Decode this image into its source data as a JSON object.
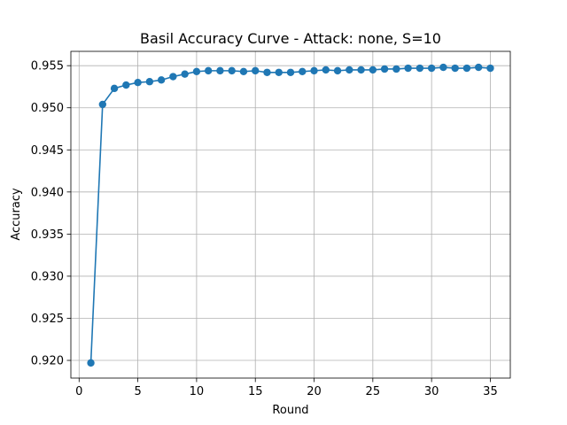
{
  "chart_data": {
    "type": "line",
    "title": "Basil Accuracy Curve - Attack: none, S=10",
    "xlabel": "Round",
    "ylabel": "Accuracy",
    "xlim": [
      -0.7,
      36.7
    ],
    "ylim": [
      0.9179,
      0.9567
    ],
    "xticks": [
      0,
      5,
      10,
      15,
      20,
      25,
      30,
      35
    ],
    "xtick_labels": [
      "0",
      "5",
      "10",
      "15",
      "20",
      "25",
      "30",
      "35"
    ],
    "yticks": [
      0.92,
      0.925,
      0.93,
      0.935,
      0.94,
      0.945,
      0.95,
      0.955
    ],
    "ytick_labels": [
      "0.920",
      "0.925",
      "0.930",
      "0.935",
      "0.940",
      "0.945",
      "0.950",
      "0.955"
    ],
    "grid": true,
    "marker": "circle",
    "color": "#1f77b4",
    "series": [
      {
        "x": [
          1,
          2,
          3,
          4,
          5,
          6,
          7,
          8,
          9,
          10,
          11,
          12,
          13,
          14,
          15,
          16,
          17,
          18,
          19,
          20,
          21,
          22,
          23,
          24,
          25,
          26,
          27,
          28,
          29,
          30,
          31,
          32,
          33,
          34,
          35
        ],
        "values": [
          0.9197,
          0.9504,
          0.9523,
          0.9527,
          0.953,
          0.9531,
          0.9533,
          0.9537,
          0.954,
          0.9543,
          0.9544,
          0.9544,
          0.9544,
          0.9543,
          0.9544,
          0.9542,
          0.9542,
          0.9542,
          0.9543,
          0.9544,
          0.9545,
          0.9544,
          0.9545,
          0.9545,
          0.9545,
          0.9546,
          0.9546,
          0.9547,
          0.9547,
          0.9547,
          0.9548,
          0.9547,
          0.9547,
          0.9548,
          0.9547
        ]
      }
    ]
  }
}
